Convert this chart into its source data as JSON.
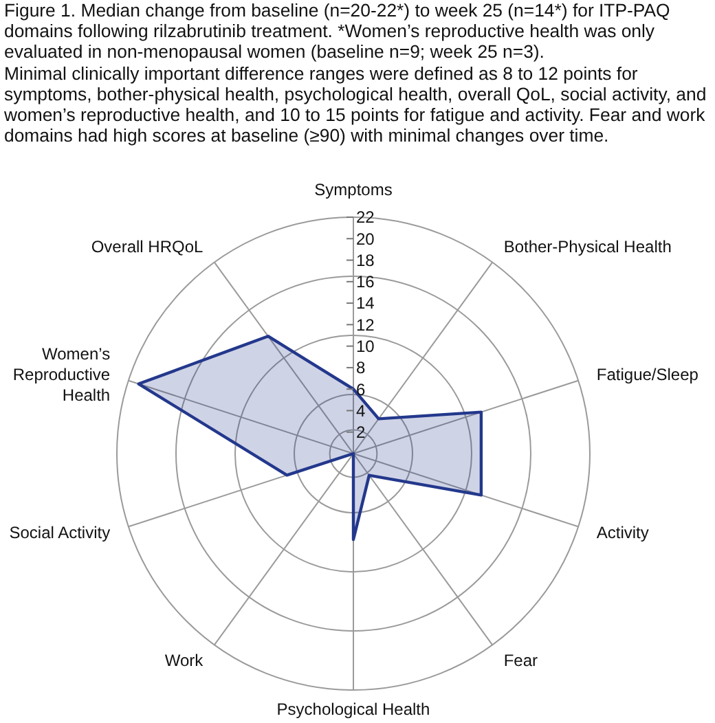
{
  "chart_data": {
    "type": "radar",
    "title": "Figure 1. Median change from baseline (n=20-22*) to week 25 (n=14*) for ITP-PAQ domains following rilzabrutinib treatment. *Women’s reproductive health was only evaluated in non-menopausal women (baseline n=9; week 25 n=3).",
    "subtitle": "Minimal clinically important difference ranges were defined as 8 to 12 points for symptoms, bother-physical health, psychological health, overall QoL, social activity, and women’s reproductive health, and 10 to 15 points for fatigue and activity. Fear and work domains had high scores at baseline (≥90) with minimal changes over time.",
    "categories": [
      "Symptoms",
      "Bother-Physical Health",
      "Fatigue/Sleep",
      "Activity",
      "Fear",
      "Psychological Health",
      "Work",
      "Social Activity",
      "Women’s Reproductive Health",
      "Overall HRQoL"
    ],
    "series": [
      {
        "color": "#23388c",
        "values": [
          6,
          4,
          12.5,
          12.5,
          2.5,
          8,
          0,
          6.5,
          21,
          13.5
        ]
      }
    ],
    "ylim": [
      0,
      22
    ],
    "yticks": [
      2,
      4,
      6,
      8,
      10,
      12,
      14,
      16,
      18,
      20,
      22
    ],
    "grid": true,
    "marker": "none"
  }
}
